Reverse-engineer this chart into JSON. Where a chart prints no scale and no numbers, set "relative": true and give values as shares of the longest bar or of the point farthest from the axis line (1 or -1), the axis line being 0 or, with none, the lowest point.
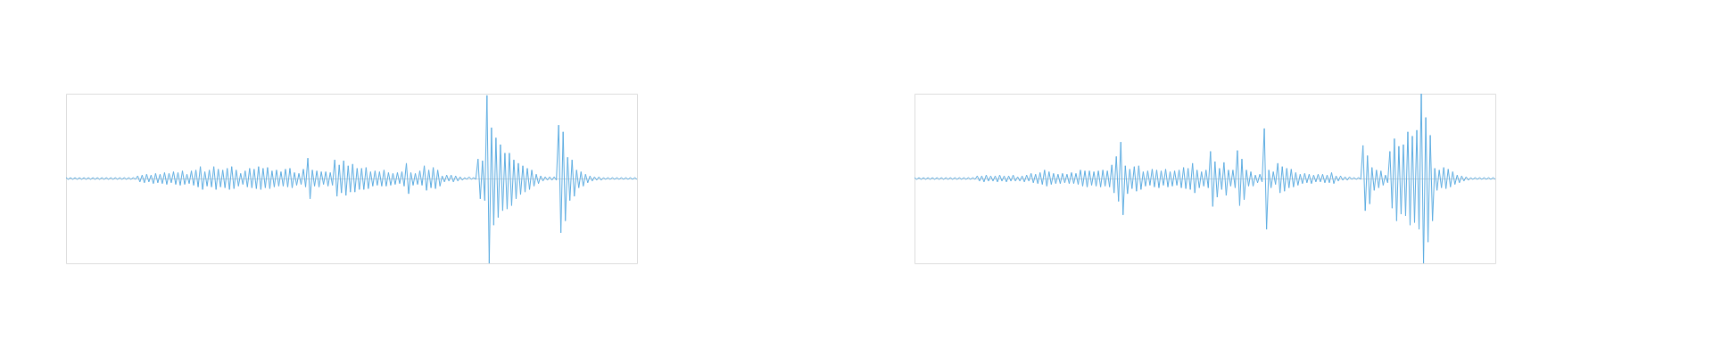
{
  "chart_data": [
    {
      "type": "line",
      "relative": true,
      "marker": "none",
      "line_style": "solid",
      "categories": [
        null,
        null,
        null,
        null,
        null,
        null,
        null,
        null,
        null,
        null,
        null,
        null,
        null,
        null,
        null,
        null,
        null,
        null,
        null,
        null,
        null,
        null,
        null,
        null,
        null,
        null,
        null,
        null,
        null,
        null,
        null,
        null,
        null,
        null,
        null,
        null,
        null,
        null,
        null,
        null,
        null,
        null,
        null,
        null,
        null,
        null,
        null,
        null,
        null,
        null,
        null,
        null,
        null,
        null,
        null,
        null,
        null,
        null,
        null,
        null,
        null,
        null,
        null,
        null,
        null,
        null,
        null,
        null,
        null,
        null,
        null,
        null,
        null,
        null,
        null,
        null,
        null,
        null,
        null,
        null,
        null,
        null,
        null,
        null,
        null,
        null,
        null,
        null,
        null,
        null,
        null,
        null,
        null,
        null,
        null,
        null,
        null,
        null,
        null,
        null,
        null,
        null,
        null,
        null,
        null,
        null,
        null,
        null,
        null,
        null,
        null,
        null,
        null,
        null,
        null,
        null,
        null,
        null,
        null,
        null,
        null,
        null,
        null,
        null,
        null,
        null,
        null,
        null,
        null,
        null,
        null,
        null,
        null,
        null,
        null,
        null,
        null,
        null,
        null,
        null,
        null,
        null,
        null,
        null,
        null,
        null,
        null,
        null,
        null,
        null,
        null,
        null,
        null,
        null,
        null,
        null,
        null,
        null,
        null,
        null,
        null,
        null,
        null,
        null,
        null,
        null,
        null,
        null,
        null,
        null,
        null,
        null,
        null,
        null,
        null,
        null,
        null,
        null,
        null,
        null,
        null,
        null,
        null,
        null,
        null,
        null,
        null,
        null,
        null,
        null,
        null,
        null,
        null,
        null,
        null,
        null,
        null,
        null,
        null,
        null,
        null,
        null,
        null,
        null,
        null,
        null,
        null,
        null,
        null,
        null,
        null,
        null,
        null,
        null,
        null,
        null,
        null,
        null,
        null,
        null,
        null,
        null,
        null,
        null,
        null,
        null,
        null,
        null,
        null,
        null,
        null,
        null,
        null,
        null,
        null,
        null,
        null,
        null,
        null,
        null,
        null,
        null,
        null,
        null,
        null,
        null,
        null,
        null,
        null,
        null,
        null,
        null,
        null,
        null,
        null,
        null
      ],
      "series": [
        {
          "color": "#5dade2",
          "values": [
            0.01,
            -0.01,
            0.01,
            -0.01,
            0.01,
            -0.01,
            0.01,
            -0.01,
            0.01,
            -0.01,
            0.01,
            -0.01,
            0.01,
            -0.01,
            0.01,
            -0.01,
            0.01,
            -0.01,
            0.01,
            -0.01,
            0.01,
            -0.01,
            0.01,
            -0.01,
            0.01,
            -0.01,
            0.01,
            -0.01,
            0.01,
            -0.01,
            0.01,
            -0.01,
            0.03,
            -0.04,
            0.04,
            -0.05,
            0.05,
            -0.04,
            0.04,
            -0.06,
            0.06,
            -0.05,
            0.05,
            -0.06,
            0.07,
            -0.07,
            0.06,
            -0.05,
            0.08,
            -0.07,
            0.07,
            -0.08,
            0.09,
            -0.07,
            0.05,
            -0.06,
            0.09,
            -0.08,
            0.1,
            -0.1,
            0.14,
            -0.13,
            0.08,
            -0.09,
            0.1,
            -0.1,
            0.14,
            -0.13,
            0.11,
            -0.1,
            0.1,
            -0.11,
            0.12,
            -0.13,
            0.14,
            -0.12,
            0.1,
            -0.09,
            0.06,
            -0.07,
            0.09,
            -0.1,
            0.12,
            -0.11,
            0.11,
            -0.12,
            0.14,
            -0.13,
            0.12,
            -0.11,
            0.13,
            -0.12,
            0.09,
            -0.1,
            0.1,
            -0.09,
            0.08,
            -0.09,
            0.11,
            -0.1,
            0.12,
            -0.11,
            0.07,
            -0.08,
            0.06,
            -0.07,
            0.11,
            -0.1,
            0.24,
            -0.24,
            0.1,
            -0.09,
            0.09,
            -0.1,
            0.08,
            -0.07,
            0.08,
            -0.09,
            0.07,
            -0.08,
            0.22,
            -0.21,
            0.16,
            -0.17,
            0.21,
            -0.2,
            0.15,
            -0.16,
            0.17,
            -0.16,
            0.12,
            -0.13,
            0.12,
            -0.13,
            0.13,
            -0.12,
            0.08,
            -0.09,
            0.09,
            -0.08,
            0.08,
            -0.09,
            0.1,
            -0.09,
            0.07,
            -0.08,
            0.06,
            -0.07,
            0.07,
            -0.06,
            0.08,
            -0.09,
            0.18,
            -0.18,
            0.07,
            -0.08,
            0.06,
            -0.07,
            0.09,
            -0.08,
            0.15,
            -0.14,
            0.1,
            -0.11,
            0.13,
            -0.12,
            0.1,
            -0.09,
            0.03,
            -0.04,
            0.04,
            -0.03,
            0.04,
            -0.04,
            0.03,
            -0.03,
            0.02,
            -0.02,
            0.01,
            -0.01,
            0.02,
            -0.01,
            0.01,
            -0.01,
            0.23,
            -0.24,
            0.21,
            -0.26,
            0.98,
            -1.0,
            0.6,
            -0.55,
            0.48,
            -0.46,
            0.4,
            -0.38,
            0.3,
            -0.36,
            0.3,
            -0.32,
            0.22,
            -0.24,
            0.18,
            -0.19,
            0.15,
            -0.16,
            0.12,
            -0.13,
            0.1,
            -0.09,
            0.05,
            -0.06,
            0.03,
            -0.03,
            0.02,
            -0.02,
            0.02,
            -0.02,
            0.02,
            -0.02,
            0.63,
            -0.64,
            0.55,
            -0.5,
            0.25,
            -0.26,
            0.22,
            -0.21,
            0.1,
            -0.11,
            0.08,
            -0.09,
            0.05,
            -0.05,
            0.03,
            -0.03,
            0.02,
            -0.02,
            0.02,
            -0.02,
            0.01,
            -0.01,
            0.01,
            -0.01,
            0.01,
            -0.01,
            0.01,
            -0.01,
            0.01,
            -0.01,
            0.01,
            -0.01,
            0.01,
            -0.01,
            0.01,
            -0.01
          ]
        }
      ]
    },
    {
      "type": "line",
      "relative": true,
      "marker": "none",
      "line_style": "solid",
      "categories": [
        null,
        null,
        null,
        null,
        null,
        null,
        null,
        null,
        null,
        null,
        null,
        null,
        null,
        null,
        null,
        null,
        null,
        null,
        null,
        null,
        null,
        null,
        null,
        null,
        null,
        null,
        null,
        null,
        null,
        null,
        null,
        null,
        null,
        null,
        null,
        null,
        null,
        null,
        null,
        null,
        null,
        null,
        null,
        null,
        null,
        null,
        null,
        null,
        null,
        null,
        null,
        null,
        null,
        null,
        null,
        null,
        null,
        null,
        null,
        null,
        null,
        null,
        null,
        null,
        null,
        null,
        null,
        null,
        null,
        null,
        null,
        null,
        null,
        null,
        null,
        null,
        null,
        null,
        null,
        null,
        null,
        null,
        null,
        null,
        null,
        null,
        null,
        null,
        null,
        null,
        null,
        null,
        null,
        null,
        null,
        null,
        null,
        null,
        null,
        null,
        null,
        null,
        null,
        null,
        null,
        null,
        null,
        null,
        null,
        null,
        null,
        null,
        null,
        null,
        null,
        null,
        null,
        null,
        null,
        null,
        null,
        null,
        null,
        null,
        null,
        null,
        null,
        null,
        null,
        null,
        null,
        null,
        null,
        null,
        null,
        null,
        null,
        null,
        null,
        null,
        null,
        null,
        null,
        null,
        null,
        null,
        null,
        null,
        null,
        null,
        null,
        null,
        null,
        null,
        null,
        null,
        null,
        null,
        null,
        null,
        null,
        null,
        null,
        null,
        null,
        null,
        null,
        null,
        null,
        null,
        null,
        null,
        null,
        null,
        null,
        null,
        null,
        null,
        null,
        null,
        null,
        null,
        null,
        null,
        null,
        null,
        null,
        null,
        null,
        null,
        null,
        null,
        null,
        null,
        null,
        null,
        null,
        null,
        null,
        null,
        null,
        null,
        null,
        null,
        null,
        null,
        null,
        null,
        null,
        null,
        null,
        null,
        null,
        null,
        null,
        null,
        null,
        null,
        null,
        null,
        null,
        null,
        null,
        null,
        null,
        null,
        null,
        null,
        null,
        null,
        null,
        null,
        null,
        null,
        null,
        null,
        null,
        null,
        null,
        null,
        null,
        null,
        null,
        null,
        null,
        null,
        null,
        null,
        null,
        null,
        null,
        null,
        null,
        null,
        null,
        null,
        null,
        null,
        null,
        null
      ],
      "series": [
        {
          "color": "#5dade2",
          "values": [
            0.01,
            -0.01,
            0.01,
            -0.01,
            0.01,
            -0.01,
            0.01,
            -0.01,
            0.01,
            -0.01,
            0.01,
            -0.01,
            0.01,
            -0.01,
            0.01,
            -0.01,
            0.01,
            -0.01,
            0.01,
            -0.01,
            0.01,
            -0.01,
            0.01,
            -0.01,
            0.01,
            -0.01,
            0.01,
            -0.01,
            0.03,
            -0.03,
            0.03,
            -0.04,
            0.04,
            -0.03,
            0.03,
            -0.03,
            0.03,
            -0.04,
            0.04,
            -0.03,
            0.03,
            -0.04,
            0.03,
            -0.03,
            0.04,
            -0.03,
            0.02,
            -0.03,
            0.03,
            -0.04,
            0.04,
            -0.03,
            0.06,
            -0.05,
            0.05,
            -0.06,
            0.07,
            -0.07,
            0.1,
            -0.09,
            0.08,
            -0.07,
            0.06,
            -0.06,
            0.05,
            -0.06,
            0.06,
            -0.05,
            0.05,
            -0.06,
            0.07,
            -0.06,
            0.06,
            -0.07,
            0.1,
            -0.09,
            0.09,
            -0.1,
            0.09,
            -0.08,
            0.08,
            -0.09,
            0.09,
            -0.1,
            0.1,
            -0.09,
            0.09,
            -0.1,
            0.16,
            -0.17,
            0.26,
            -0.27,
            0.43,
            -0.43,
            0.15,
            -0.18,
            0.11,
            -0.12,
            0.14,
            -0.15,
            0.15,
            -0.13,
            0.08,
            -0.09,
            0.09,
            -0.08,
            0.11,
            -0.1,
            0.1,
            -0.11,
            0.09,
            -0.08,
            0.11,
            -0.1,
            0.08,
            -0.09,
            0.09,
            -0.08,
            0.1,
            -0.11,
            0.13,
            -0.12,
            0.12,
            -0.13,
            0.18,
            -0.17,
            0.1,
            -0.11,
            0.08,
            -0.09,
            0.1,
            -0.11,
            0.32,
            -0.33,
            0.2,
            -0.22,
            0.12,
            -0.13,
            0.19,
            -0.2,
            0.1,
            -0.09,
            0.1,
            -0.11,
            0.33,
            -0.32,
            0.23,
            -0.25,
            0.1,
            -0.09,
            0.08,
            -0.09,
            0.04,
            -0.05,
            0.05,
            -0.04,
            0.59,
            -0.6,
            0.1,
            -0.11,
            0.08,
            -0.07,
            0.18,
            -0.17,
            0.14,
            -0.15,
            0.12,
            -0.11,
            0.11,
            -0.1,
            0.07,
            -0.08,
            0.05,
            -0.06,
            0.06,
            -0.05,
            0.05,
            -0.06,
            0.04,
            -0.04,
            0.05,
            -0.04,
            0.05,
            -0.05,
            0.04,
            -0.05,
            0.07,
            -0.06,
            0.03,
            -0.03,
            0.03,
            -0.02,
            0.02,
            -0.02,
            0.02,
            -0.01,
            0.01,
            -0.01,
            0.01,
            -0.01,
            0.39,
            -0.38,
            0.27,
            -0.3,
            0.13,
            -0.14,
            0.1,
            -0.11,
            0.09,
            -0.08,
            0.04,
            -0.05,
            0.32,
            -0.35,
            0.47,
            -0.5,
            0.38,
            -0.42,
            0.4,
            -0.44,
            0.55,
            -0.55,
            0.5,
            -0.52,
            0.57,
            -0.6,
            1.0,
            -1.0,
            0.72,
            -0.75,
            0.51,
            -0.5,
            0.12,
            -0.14,
            0.1,
            -0.11,
            0.13,
            -0.12,
            0.11,
            -0.1,
            0.08,
            -0.07,
            0.04,
            -0.05,
            0.03,
            -0.03,
            0.02,
            -0.02,
            0.01,
            -0.01,
            0.01,
            -0.01,
            0.01,
            -0.01,
            0.01,
            -0.01,
            0.01,
            -0.01,
            0.01,
            -0.01
          ]
        }
      ]
    }
  ]
}
